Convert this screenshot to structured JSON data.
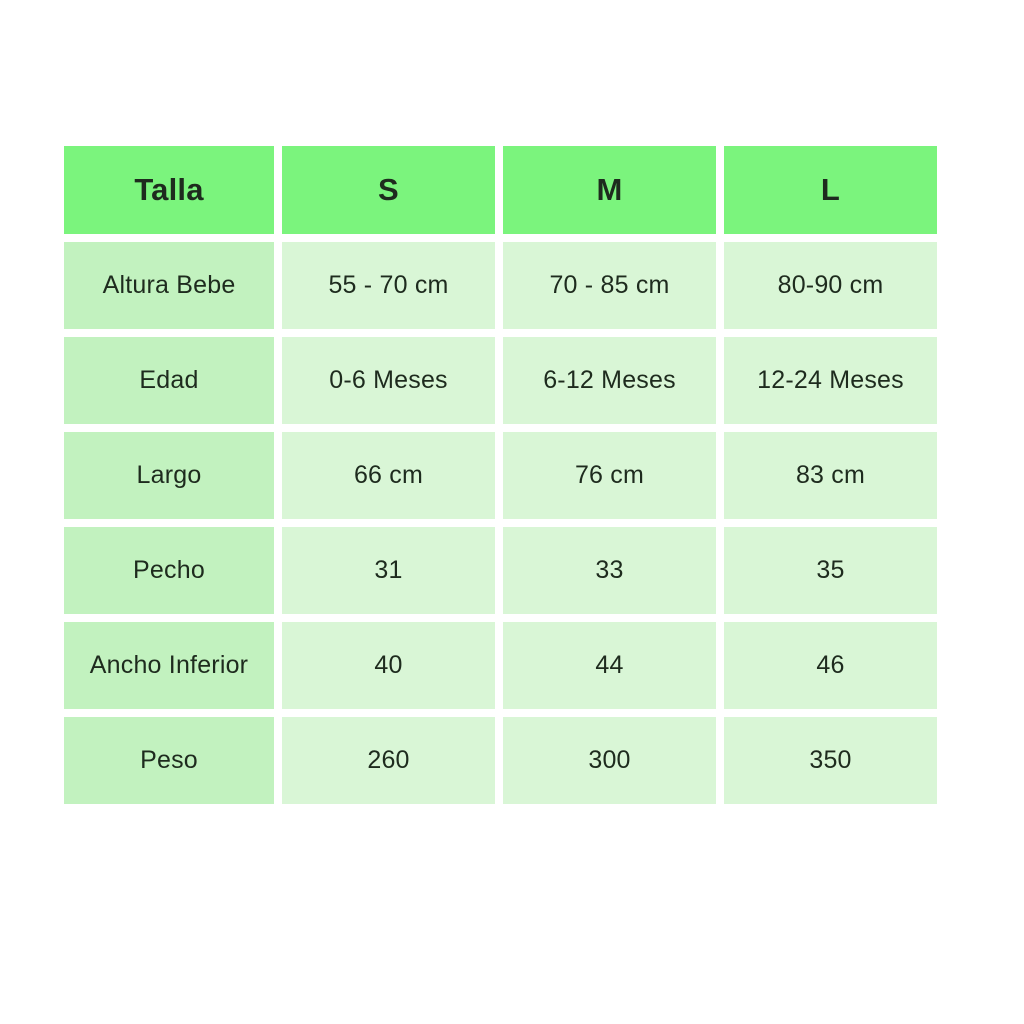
{
  "colors": {
    "header_bg": "#7bf47d",
    "label_bg": "#c2f2bf",
    "cell_bg": "#d9f6d6",
    "text": "#1e2b1e",
    "page_bg": "#ffffff"
  },
  "chart_data": {
    "type": "table",
    "columns": [
      "Talla",
      "S",
      "M",
      "L"
    ],
    "rows": [
      [
        "Altura Bebe",
        "55 - 70 cm",
        "70 - 85 cm",
        "80-90 cm"
      ],
      [
        "Edad",
        "0-6 Meses",
        "6-12 Meses",
        "12-24 Meses"
      ],
      [
        "Largo",
        "66 cm",
        "76 cm",
        "83 cm"
      ],
      [
        "Pecho",
        "31",
        "33",
        "35"
      ],
      [
        "Ancho Inferior",
        "40",
        "44",
        "46"
      ],
      [
        "Peso",
        "260",
        "300",
        "350"
      ]
    ],
    "layout": {
      "header_position": "top-row",
      "label_column": "left",
      "grid": "separated-cells-with-white-gaps"
    }
  }
}
